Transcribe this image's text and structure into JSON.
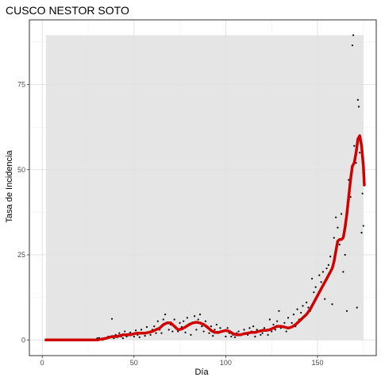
{
  "chart_data": {
    "type": "scatter",
    "title": "CUSCO NESTOR SOTO",
    "xlabel": "Día",
    "ylabel": "Tasa de Incidencia",
    "xlim": [
      -7,
      182
    ],
    "ylim": [
      -4.6,
      94
    ],
    "x_ticks": [
      0,
      50,
      100,
      150
    ],
    "y_ticks": [
      0,
      25,
      50,
      75
    ],
    "x_tick_labels": [
      "0",
      "50",
      "100",
      "150"
    ],
    "y_tick_labels": [
      "0",
      "25",
      "50",
      "75"
    ],
    "grid": true,
    "shaded_band": {
      "x": [
        2,
        175
      ],
      "y": [
        0,
        89.5
      ],
      "color": "#e0e0e0"
    },
    "panel_border_color": "#333333",
    "series": [
      {
        "kind": "points",
        "color": "#000000",
        "points": [
          [
            2,
            0
          ],
          [
            4,
            0
          ],
          [
            6,
            0
          ],
          [
            8,
            0
          ],
          [
            10,
            0
          ],
          [
            12,
            0
          ],
          [
            14,
            0
          ],
          [
            16,
            0
          ],
          [
            18,
            0
          ],
          [
            20,
            0
          ],
          [
            22,
            0
          ],
          [
            24,
            0
          ],
          [
            26,
            0
          ],
          [
            28,
            0
          ],
          [
            30,
            0.5
          ],
          [
            31,
            0.6
          ],
          [
            33,
            0
          ],
          [
            35,
            0.4
          ],
          [
            36,
            1
          ],
          [
            38,
            6.2
          ],
          [
            39,
            0.5
          ],
          [
            40,
            1.5
          ],
          [
            41,
            0.8
          ],
          [
            42,
            2
          ],
          [
            43,
            1
          ],
          [
            44,
            0.5
          ],
          [
            45,
            2.5
          ],
          [
            46,
            1
          ],
          [
            47,
            1.8
          ],
          [
            48,
            2.2
          ],
          [
            50,
            1
          ],
          [
            51,
            2.8
          ],
          [
            52,
            1.5
          ],
          [
            53,
            0.8
          ],
          [
            54,
            3
          ],
          [
            55,
            2
          ],
          [
            56,
            1.2
          ],
          [
            57,
            3.8
          ],
          [
            58,
            2.2
          ],
          [
            59,
            1.5
          ],
          [
            60,
            3
          ],
          [
            61,
            4
          ],
          [
            62,
            2
          ],
          [
            63,
            5.5
          ],
          [
            64,
            3
          ],
          [
            65,
            2
          ],
          [
            66,
            6
          ],
          [
            67,
            7.5
          ],
          [
            68,
            5
          ],
          [
            69,
            3
          ],
          [
            70,
            4.5
          ],
          [
            71,
            2.5
          ],
          [
            72,
            6
          ],
          [
            73,
            3.5
          ],
          [
            74,
            2.5
          ],
          [
            75,
            5
          ],
          [
            76,
            3.8
          ],
          [
            77,
            5.5
          ],
          [
            78,
            2.2
          ],
          [
            79,
            6.5
          ],
          [
            80,
            4.5
          ],
          [
            81,
            1.5
          ],
          [
            82,
            5
          ],
          [
            83,
            7
          ],
          [
            84,
            3
          ],
          [
            85,
            6
          ],
          [
            86,
            7.5
          ],
          [
            87,
            4
          ],
          [
            88,
            2.5
          ],
          [
            89,
            5.5
          ],
          [
            90,
            3.5
          ],
          [
            91,
            2
          ],
          [
            92,
            4
          ],
          [
            93,
            1.2
          ],
          [
            94,
            3
          ],
          [
            95,
            4.5
          ],
          [
            96,
            2
          ],
          [
            97,
            3.5
          ],
          [
            98,
            2.5
          ],
          [
            100,
            1
          ],
          [
            101,
            3.5
          ],
          [
            102,
            2
          ],
          [
            103,
            1
          ],
          [
            104,
            1.5
          ],
          [
            105,
            0.8
          ],
          [
            106,
            2
          ],
          [
            107,
            2.5
          ],
          [
            108,
            1.5
          ],
          [
            110,
            3
          ],
          [
            111,
            2
          ],
          [
            112,
            1.5
          ],
          [
            113,
            3.5
          ],
          [
            114,
            2.5
          ],
          [
            115,
            4
          ],
          [
            116,
            1
          ],
          [
            117,
            3
          ],
          [
            118,
            2.5
          ],
          [
            119,
            1.5
          ],
          [
            120,
            2
          ],
          [
            121,
            3.5
          ],
          [
            122,
            2.8
          ],
          [
            123,
            1.5
          ],
          [
            124,
            6
          ],
          [
            125,
            2.5
          ],
          [
            126,
            4.5
          ],
          [
            127,
            3
          ],
          [
            128,
            5.5
          ],
          [
            129,
            8.5
          ],
          [
            130,
            3.5
          ],
          [
            131,
            4
          ],
          [
            132,
            5
          ],
          [
            133,
            2.5
          ],
          [
            134,
            6.5
          ],
          [
            135,
            3.5
          ],
          [
            136,
            5
          ],
          [
            137,
            7.5
          ],
          [
            138,
            4
          ],
          [
            139,
            9
          ],
          [
            140,
            6
          ],
          [
            141,
            8
          ],
          [
            142,
            10
          ],
          [
            143,
            7
          ],
          [
            144,
            11
          ],
          [
            145,
            9.5
          ],
          [
            146,
            8.5
          ],
          [
            147,
            18
          ],
          [
            148,
            14
          ],
          [
            149,
            15.5
          ],
          [
            150,
            13
          ],
          [
            151,
            19
          ],
          [
            152,
            17
          ],
          [
            153,
            20
          ],
          [
            154,
            12
          ],
          [
            155,
            21
          ],
          [
            156,
            22
          ],
          [
            157,
            24.5
          ],
          [
            158,
            10.5
          ],
          [
            159,
            30
          ],
          [
            160,
            36
          ],
          [
            161,
            33
          ],
          [
            162,
            28
          ],
          [
            163,
            37
          ],
          [
            164,
            20
          ],
          [
            165,
            25
          ],
          [
            166,
            8.5
          ],
          [
            167,
            47
          ],
          [
            168,
            42
          ],
          [
            169,
            86.5
          ],
          [
            169.5,
            89.5
          ],
          [
            170,
            57
          ],
          [
            171,
            52
          ],
          [
            171.5,
            9.5
          ],
          [
            172,
            70.5
          ],
          [
            172.5,
            68.5
          ],
          [
            173,
            55
          ],
          [
            174,
            31.5
          ],
          [
            174.5,
            43
          ],
          [
            175,
            33.5
          ]
        ]
      },
      {
        "kind": "line",
        "color": "#d00000",
        "points": [
          [
            2,
            0
          ],
          [
            10,
            0
          ],
          [
            20,
            0
          ],
          [
            30,
            0
          ],
          [
            35,
            0.5
          ],
          [
            38,
            1
          ],
          [
            40,
            1
          ],
          [
            42,
            1.2
          ],
          [
            44,
            1.5
          ],
          [
            46,
            1.5
          ],
          [
            48,
            1.5
          ],
          [
            50,
            1.8
          ],
          [
            52,
            2
          ],
          [
            54,
            2
          ],
          [
            56,
            2
          ],
          [
            58,
            2.2
          ],
          [
            60,
            2.5
          ],
          [
            62,
            3
          ],
          [
            64,
            3.5
          ],
          [
            66,
            4.5
          ],
          [
            68,
            5
          ],
          [
            70,
            5
          ],
          [
            72,
            4
          ],
          [
            74,
            3
          ],
          [
            76,
            3.2
          ],
          [
            78,
            3.8
          ],
          [
            80,
            4.5
          ],
          [
            82,
            5
          ],
          [
            84,
            5.2
          ],
          [
            86,
            5
          ],
          [
            88,
            4.5
          ],
          [
            90,
            3.8
          ],
          [
            92,
            2.8
          ],
          [
            94,
            2.2
          ],
          [
            96,
            2.2
          ],
          [
            98,
            2.5
          ],
          [
            100,
            2.8
          ],
          [
            102,
            2.5
          ],
          [
            104,
            1.8
          ],
          [
            106,
            1.5
          ],
          [
            108,
            1.5
          ],
          [
            110,
            1.8
          ],
          [
            112,
            2
          ],
          [
            114,
            2.2
          ],
          [
            116,
            2.2
          ],
          [
            118,
            2.5
          ],
          [
            120,
            2.8
          ],
          [
            122,
            2.8
          ],
          [
            124,
            3
          ],
          [
            126,
            3.5
          ],
          [
            128,
            4
          ],
          [
            130,
            4
          ],
          [
            132,
            3.8
          ],
          [
            134,
            3.5
          ],
          [
            136,
            3.8
          ],
          [
            138,
            4.5
          ],
          [
            140,
            5.5
          ],
          [
            142,
            6.5
          ],
          [
            144,
            7.5
          ],
          [
            146,
            9
          ],
          [
            148,
            11
          ],
          [
            150,
            13
          ],
          [
            152,
            15
          ],
          [
            154,
            17
          ],
          [
            156,
            19
          ],
          [
            158,
            21
          ],
          [
            159,
            23
          ],
          [
            160,
            26
          ],
          [
            161,
            29
          ],
          [
            162,
            29.5
          ],
          [
            163,
            29.5
          ],
          [
            164,
            30
          ],
          [
            165,
            33
          ],
          [
            166,
            37
          ],
          [
            167,
            42
          ],
          [
            168,
            47
          ],
          [
            169,
            51
          ],
          [
            170,
            52
          ],
          [
            171,
            55
          ],
          [
            172,
            59
          ],
          [
            173,
            60
          ],
          [
            174,
            57
          ],
          [
            175,
            51
          ],
          [
            175.5,
            45.5
          ]
        ]
      }
    ]
  }
}
